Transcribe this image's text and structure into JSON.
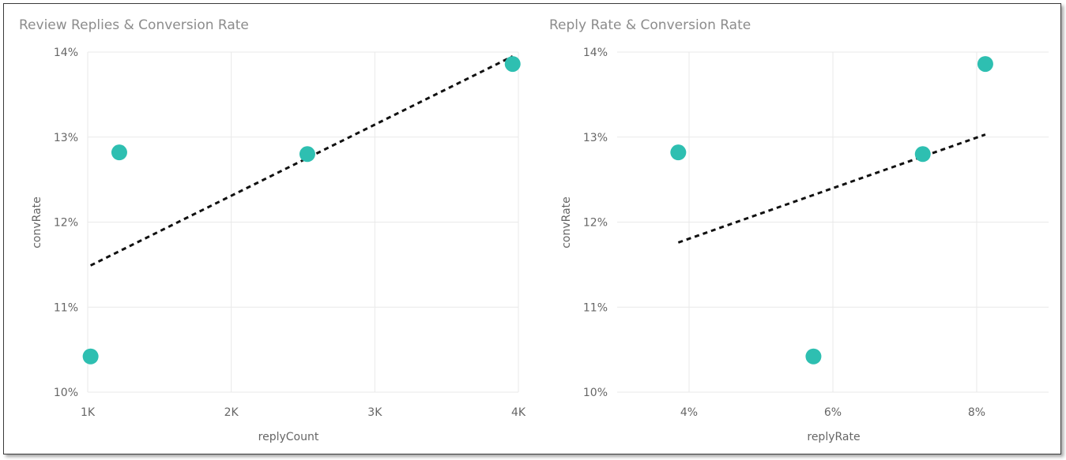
{
  "chart_data": [
    {
      "type": "scatter",
      "title": "Review Replies & Conversion Rate",
      "xlabel": "replyCount",
      "ylabel": "convRate",
      "xlim": [
        1000,
        4000
      ],
      "ylim": [
        0.1,
        0.14
      ],
      "x_ticks": [
        1000,
        2000,
        3000,
        4000
      ],
      "x_tick_labels": [
        "1K",
        "2K",
        "3K",
        "4K"
      ],
      "y_ticks": [
        0.1,
        0.11,
        0.12,
        0.13,
        0.14
      ],
      "y_tick_labels": [
        "10%",
        "11%",
        "12%",
        "13%",
        "14%"
      ],
      "grid": true,
      "legend": "none",
      "marker_color": "#2ebfb1",
      "points": [
        {
          "x": 1020,
          "y": 0.1042
        },
        {
          "x": 1220,
          "y": 0.1282
        },
        {
          "x": 2530,
          "y": 0.128
        },
        {
          "x": 3960,
          "y": 0.1386
        }
      ],
      "trendline": {
        "x": [
          1020,
          3960
        ],
        "y": [
          0.1149,
          0.1395
        ]
      }
    },
    {
      "type": "scatter",
      "title": "Reply Rate & Conversion Rate",
      "xlabel": "replyRate",
      "ylabel": "convRate",
      "xlim": [
        0.03,
        0.09
      ],
      "ylim": [
        0.1,
        0.14
      ],
      "x_ticks": [
        0.04,
        0.06,
        0.08
      ],
      "x_tick_labels": [
        "4%",
        "6%",
        "8%"
      ],
      "y_ticks": [
        0.1,
        0.11,
        0.12,
        0.13,
        0.14
      ],
      "y_tick_labels": [
        "10%",
        "11%",
        "12%",
        "13%",
        "14%"
      ],
      "grid": true,
      "legend": "none",
      "marker_color": "#2ebfb1",
      "points": [
        {
          "x": 0.0385,
          "y": 0.1282
        },
        {
          "x": 0.0573,
          "y": 0.1042
        },
        {
          "x": 0.0725,
          "y": 0.128
        },
        {
          "x": 0.0812,
          "y": 0.1386
        }
      ],
      "trendline": {
        "x": [
          0.0385,
          0.0812
        ],
        "y": [
          0.1176,
          0.1303
        ]
      }
    }
  ]
}
